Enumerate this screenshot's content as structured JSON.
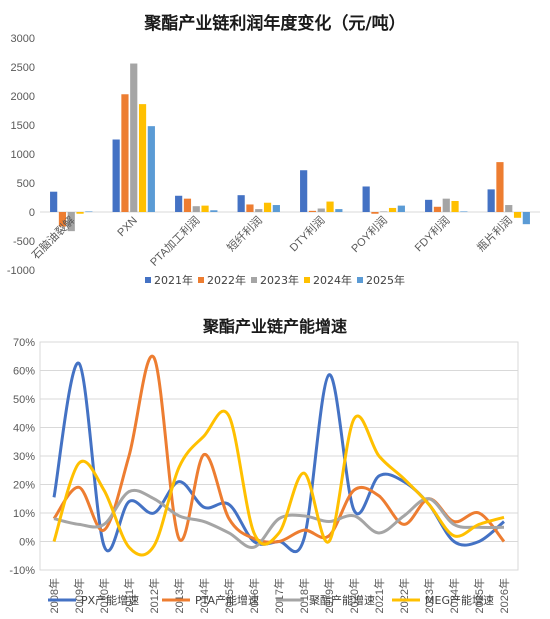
{
  "chart_data": [
    {
      "type": "bar",
      "title": "聚酯产业链利润年度变化（元/吨）",
      "categories": [
        "石脑油裂解",
        "PXN",
        "PTA加工利润",
        "短纤利润",
        "DTY利润",
        "POY利润",
        "FDY利润",
        "瓶片利润"
      ],
      "ylim": [
        -1000,
        3000
      ],
      "yticks": [
        "-1000",
        "-500",
        "0",
        "500",
        "1000",
        "1500",
        "2000",
        "2500",
        "3000"
      ],
      "legend_position": "bottom",
      "grid": false,
      "series": [
        {
          "name": "2021年",
          "color": "#4472C4",
          "values": [
            350,
            1250,
            280,
            290,
            720,
            440,
            210,
            390
          ]
        },
        {
          "name": "2022年",
          "color": "#ED7D31",
          "values": [
            -250,
            2030,
            230,
            130,
            20,
            -30,
            90,
            860
          ]
        },
        {
          "name": "2023年",
          "color": "#A5A5A5",
          "values": [
            -330,
            2560,
            100,
            50,
            60,
            10,
            230,
            120
          ]
        },
        {
          "name": "2024年",
          "color": "#FFC000",
          "values": [
            -30,
            1860,
            110,
            160,
            180,
            70,
            190,
            -100
          ]
        },
        {
          "name": "2025年",
          "color": "#5B9BD5",
          "values": [
            10,
            1480,
            30,
            120,
            50,
            110,
            10,
            -210
          ]
        }
      ]
    },
    {
      "type": "line",
      "title": "聚酯产业链产能增速",
      "x": [
        "2008年",
        "2009年",
        "2010年",
        "2011年",
        "2012年",
        "2013年",
        "2014年",
        "2015年",
        "2016年",
        "2017年",
        "2018年",
        "2019年",
        "2020年",
        "2021年",
        "2022年",
        "2023年",
        "2024年",
        "2025年",
        "2026年"
      ],
      "ylim": [
        -10,
        70
      ],
      "yticks": [
        "-10%",
        "0%",
        "10%",
        "20%",
        "30%",
        "40%",
        "50%",
        "60%",
        "70%"
      ],
      "grid": true,
      "legend_position": "bottom",
      "series": [
        {
          "name": "PX产能增速",
          "color": "#4472C4",
          "values": [
            15.5,
            62.5,
            -1.5,
            14,
            10,
            21,
            12,
            13,
            0,
            0,
            1,
            58.5,
            11,
            23,
            21,
            13,
            0,
            0,
            7
          ]
        },
        {
          "name": "PTA产能增速",
          "color": "#ED7D31",
          "values": [
            8,
            19,
            4,
            30,
            64.5,
            1,
            30.5,
            8,
            1,
            0,
            4,
            2,
            18,
            16,
            6,
            15,
            7,
            10,
            0
          ]
        },
        {
          "name": "聚酯产能增速",
          "color": "#A5A5A5",
          "values": [
            8,
            6,
            6,
            17.5,
            15,
            9,
            7,
            3,
            -2,
            8,
            9,
            7,
            9,
            3,
            9,
            15,
            6,
            5,
            5
          ]
        },
        {
          "name": "MEG产能增速",
          "color": "#FFC000",
          "values": [
            0,
            27.5,
            18,
            -2,
            -1.5,
            26,
            37,
            44,
            3,
            3,
            24,
            0,
            43,
            30,
            22,
            13,
            2,
            6,
            8.5
          ]
        }
      ]
    }
  ]
}
